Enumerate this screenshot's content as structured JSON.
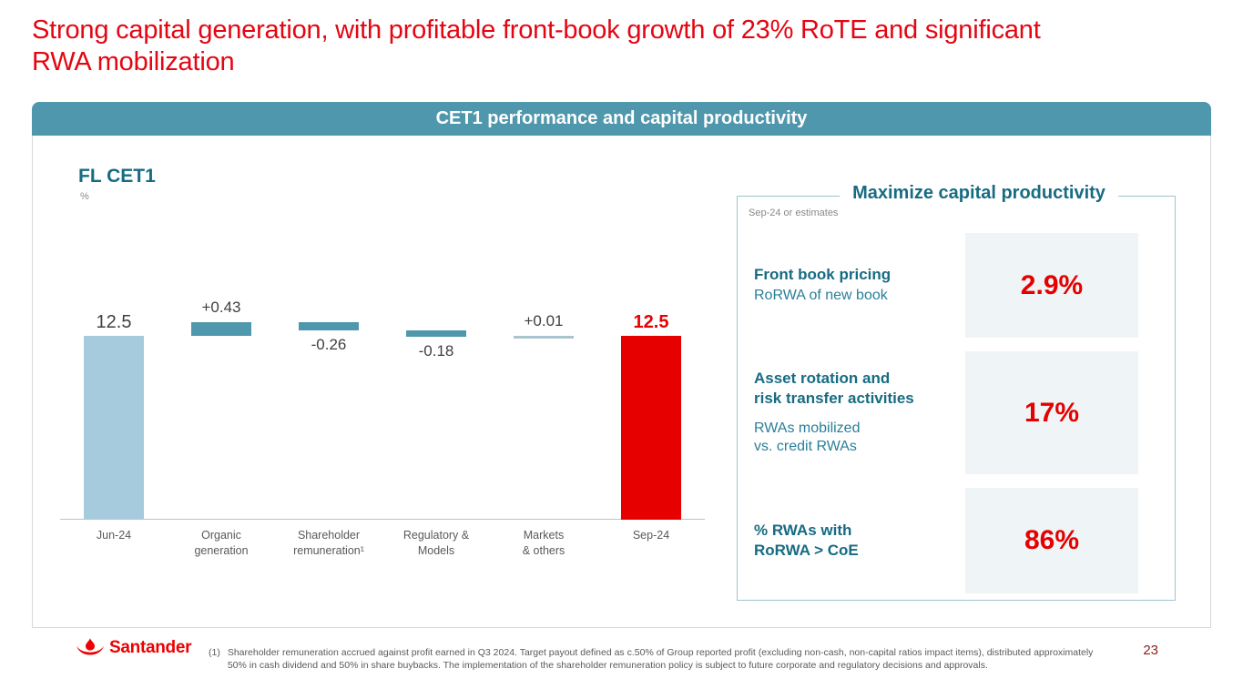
{
  "slide": {
    "title": "Strong capital generation, with profitable front-book growth of 23% RoTE and significant RWA mobilization",
    "banner_title": "CET1 performance and capital productivity",
    "page_number": "23"
  },
  "chart": {
    "heading": "FL CET1",
    "unit_label": "%"
  },
  "chart_data": {
    "type": "waterfall",
    "title": "FL CET1",
    "ylabel": "%",
    "axis": {
      "display_min": 6.9,
      "note": "y-axis truncated; bars not zero-based",
      "grid": false
    },
    "categories": [
      "Jun-24",
      "Organic generation",
      "Shareholder remuneration (1)",
      "Regulatory & Models",
      "Markets & others",
      "Sep-24"
    ],
    "series": [
      {
        "category": "Jun-24",
        "kind": "total",
        "value": 12.5,
        "label": "12.5",
        "label_position": "above",
        "bar_color": "#a5cbdd",
        "label_color": "#3f3f3f",
        "label_bold": false
      },
      {
        "category": "Organic\ngeneration",
        "kind": "delta",
        "value": 0.43,
        "label": "+0.43",
        "label_position": "above",
        "bar_color": "#4f97ac",
        "label_color": "#3f3f3f",
        "label_bold": false
      },
      {
        "category": "Shareholder\nremuneration¹",
        "kind": "delta",
        "value": -0.26,
        "label": "-0.26",
        "label_position": "below",
        "bar_color": "#4f97ac",
        "label_color": "#3f3f3f",
        "label_bold": false
      },
      {
        "category": "Regulatory &\nModels",
        "kind": "delta",
        "value": -0.18,
        "label": "-0.18",
        "label_position": "below",
        "bar_color": "#4f97ac",
        "label_color": "#3f3f3f",
        "label_bold": false
      },
      {
        "category": "Markets\n& others",
        "kind": "delta",
        "value": 0.01,
        "label": "+0.01",
        "label_position": "above",
        "bar_color": "#a8c4cf",
        "label_color": "#3f3f3f",
        "label_bold": false
      },
      {
        "category": "Sep-24",
        "kind": "total",
        "value": 12.5,
        "label": "12.5",
        "label_position": "above",
        "bar_color": "#e60000",
        "label_color": "#e60000",
        "label_bold": true
      }
    ]
  },
  "panel": {
    "title": "Maximize capital productivity",
    "subtitle": "Sep-24 or estimates",
    "rows": [
      {
        "title": "Front book pricing",
        "subtitle": "RoRWA of new book",
        "value": "2.9%"
      },
      {
        "title": "Asset rotation and\nrisk transfer activities",
        "subtitle": "RWAs mobilized\nvs. credit RWAs",
        "value": "17%"
      },
      {
        "title": "% RWAs with\nRoRWA > CoE",
        "subtitle": "",
        "value": "86%"
      }
    ]
  },
  "footer": {
    "logo_text": "Santander",
    "footnote_marker": "(1)",
    "footnote_text": "Shareholder remuneration accrued against profit earned in Q3 2024. Target payout defined as c.50% of Group reported profit (excluding non-cash, non-capital ratios impact items), distributed approximately 50% in cash dividend and 50% in share buybacks. The implementation of the shareholder remuneration policy is subject to future corporate and regulatory decisions and approvals."
  },
  "colors": {
    "santander_red": "#ec0000",
    "title_red": "#e30613",
    "banner_teal": "#4f97ac",
    "text_teal": "#176b82",
    "bar_light_blue": "#a5cbdd",
    "bar_teal": "#4f97ac",
    "bar_red": "#e60000",
    "value_red": "#e60000",
    "value_box_bg": "#eff5f7",
    "panel_border": "#9fc4cf"
  }
}
